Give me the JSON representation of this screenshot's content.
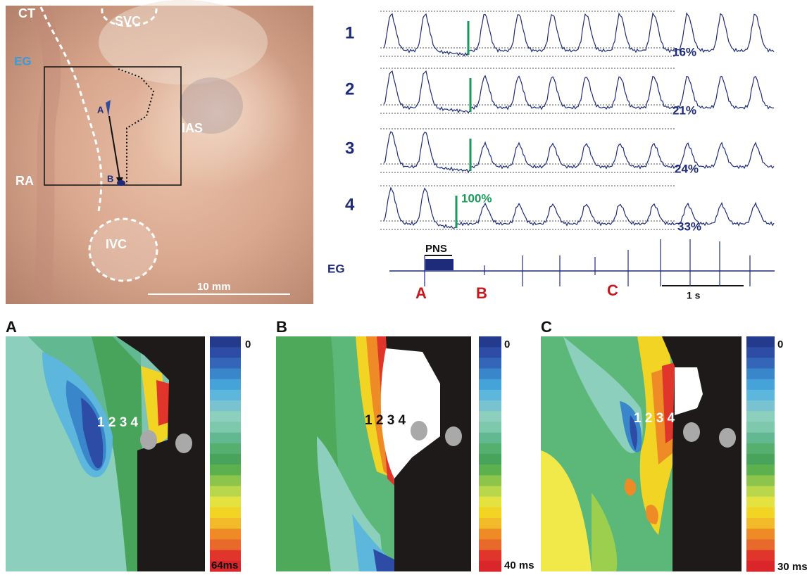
{
  "photo": {
    "labels": {
      "ct": "CT",
      "svc": "SVC",
      "eg": "EG",
      "ias": "IAS",
      "ra": "RA",
      "ivc": "IVC",
      "a": "A",
      "b": "B"
    },
    "scale_bar": "10 mm"
  },
  "traces": {
    "rows": [
      {
        "label": "1",
        "percent": "16%"
      },
      {
        "label": "2",
        "percent": "21%"
      },
      {
        "label": "3",
        "percent": "24%"
      },
      {
        "label": "4",
        "percent": "33%"
      }
    ],
    "full_capture": "100%",
    "eg_label": "EG",
    "stimulus": "PNS",
    "markers": [
      "A",
      "B",
      "C"
    ],
    "time_bar": "1 s"
  },
  "maps": [
    {
      "panel": "A",
      "sites": "1 2 3 4",
      "scale_top": "0",
      "scale_bottom": "64ms"
    },
    {
      "panel": "B",
      "sites": "1 2 3 4",
      "scale_top": "0",
      "scale_bottom": "40 ms"
    },
    {
      "panel": "C",
      "sites": "1 2 3 4",
      "scale_top": "0",
      "scale_bottom": "30 ms"
    }
  ]
}
